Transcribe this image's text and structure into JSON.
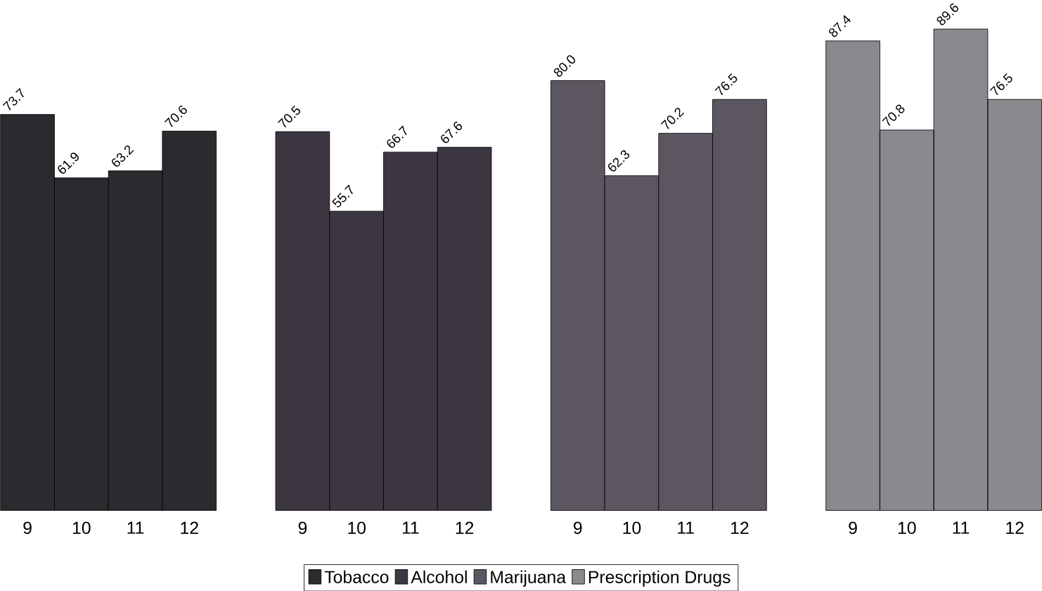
{
  "chart_data": {
    "type": "bar",
    "categories": [
      "9",
      "10",
      "11",
      "12",
      "9",
      "10",
      "11",
      "12",
      "9",
      "10",
      "11",
      "12",
      "9",
      "10",
      "11",
      "12"
    ],
    "series": [
      {
        "name": "Tobacco",
        "color": "#2b2a2e",
        "values": [
          73.7,
          61.9,
          63.2,
          70.6,
          null,
          null,
          null,
          null,
          null,
          null,
          null,
          null,
          null,
          null,
          null,
          null
        ],
        "value_labels": [
          "73.7",
          "61.9",
          "63.2",
          "70.6",
          null,
          null,
          null,
          null,
          null,
          null,
          null,
          null,
          null,
          null,
          null,
          null
        ]
      },
      {
        "name": "Alcohol",
        "color": "#3b3640",
        "values": [
          null,
          null,
          null,
          null,
          70.5,
          55.7,
          66.7,
          67.6,
          null,
          null,
          null,
          null,
          null,
          null,
          null,
          null
        ],
        "value_labels": [
          null,
          null,
          null,
          null,
          "70.5",
          "55.7",
          "66.7",
          "67.6",
          null,
          null,
          null,
          null,
          null,
          null,
          null,
          null
        ]
      },
      {
        "name": "Marijuana",
        "color": "#5b5660",
        "values": [
          null,
          null,
          null,
          null,
          null,
          null,
          null,
          null,
          80.0,
          62.3,
          70.2,
          76.5,
          null,
          null,
          null,
          null
        ],
        "value_labels": [
          null,
          null,
          null,
          null,
          null,
          null,
          null,
          null,
          "80.0",
          "62.3",
          "70.2",
          "76.5",
          null,
          null,
          null,
          null
        ]
      },
      {
        "name": "Prescription Drugs",
        "color": "#8a898e",
        "values": [
          null,
          null,
          null,
          null,
          null,
          null,
          null,
          null,
          null,
          null,
          null,
          null,
          87.4,
          70.8,
          89.6,
          76.5
        ],
        "value_labels": [
          null,
          null,
          null,
          null,
          null,
          null,
          null,
          null,
          null,
          null,
          null,
          null,
          "87.4",
          "70.8",
          "89.6",
          "76.5"
        ]
      }
    ],
    "legend": "bottom"
  }
}
